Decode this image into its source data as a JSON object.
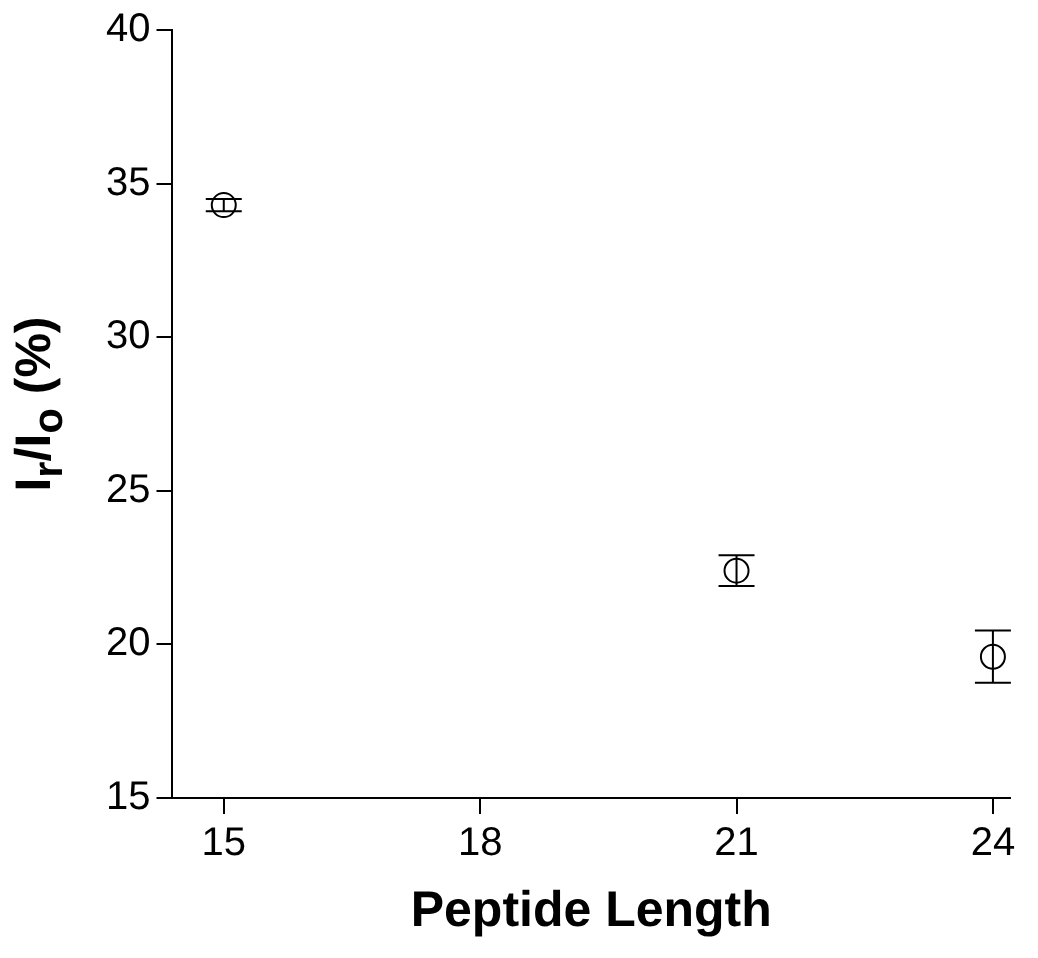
{
  "chart_data": {
    "type": "scatter",
    "xlabel": "Peptide Length",
    "ylabel": "I$_{r}$/I$_{o}$ (%)",
    "x": [
      15,
      21,
      24
    ],
    "series": [
      {
        "color": "#000000",
        "values": [
          34.3,
          22.4,
          19.6
        ],
        "errors": [
          0.2,
          0.5,
          0.85
        ]
      }
    ],
    "xlim": [
      14.4,
      24.2
    ],
    "xticks": [
      15,
      18,
      21,
      24
    ],
    "ylim": [
      15,
      40
    ],
    "yticks": [
      15,
      20,
      25,
      30,
      35,
      40
    ],
    "marker": "circle",
    "grid": false,
    "legend": false
  }
}
